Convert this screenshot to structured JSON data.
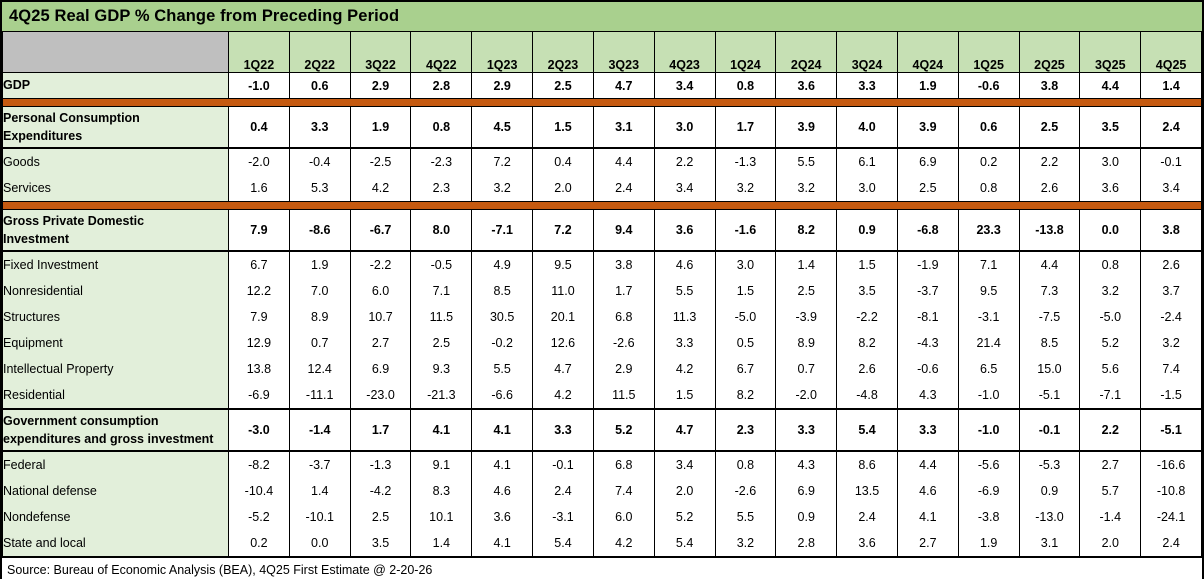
{
  "header": {
    "title": "4Q25 Real GDP % Change from Preceding Period"
  },
  "footer": {
    "source": "Source: Bureau of Economic Analysis (BEA), 4Q25 First Estimate @ 2-20-26"
  },
  "colors": {
    "title-green": "#A9D08E",
    "header-green": "#C6E0B4",
    "label-green": "#E2EFDA",
    "corner-gray": "#BFBFBF",
    "divider-orange": "#C55A11",
    "border-black": "#000000",
    "cell-white": "#FFFFFF"
  },
  "chart_data": {
    "type": "table",
    "title": "4Q25 Real GDP % Change from Preceding Period",
    "source": "Source: Bureau of Economic Analysis (BEA), 4Q25 First Estimate @ 2-20-26",
    "columns": [
      "1Q22",
      "2Q22",
      "3Q22",
      "4Q22",
      "1Q23",
      "2Q23",
      "3Q23",
      "4Q23",
      "1Q24",
      "2Q24",
      "3Q24",
      "4Q24",
      "1Q25",
      "2Q25",
      "3Q25",
      "4Q25"
    ],
    "rows": [
      {
        "name": "GDP",
        "label_lines": [
          "GDP"
        ],
        "header": true,
        "align": "center",
        "indent": 0,
        "values": [
          "-1.0",
          "0.6",
          "2.9",
          "2.8",
          "2.9",
          "2.5",
          "4.7",
          "3.4",
          "0.8",
          "3.6",
          "3.3",
          "1.9",
          "-0.6",
          "3.8",
          "4.4",
          "1.4"
        ]
      },
      {
        "separator": true
      },
      {
        "name": "Personal Consumption Expenditures",
        "label_lines": [
          "Personal Consumption",
          "Expenditures"
        ],
        "header": true,
        "indent": 0,
        "bottom_rule": true,
        "values": [
          "0.4",
          "3.3",
          "1.9",
          "0.8",
          "4.5",
          "1.5",
          "3.1",
          "3.0",
          "1.7",
          "3.9",
          "4.0",
          "3.9",
          "0.6",
          "2.5",
          "3.5",
          "2.4"
        ]
      },
      {
        "name": "Goods",
        "label_lines": [
          "Goods"
        ],
        "indent": 3,
        "values": [
          "-2.0",
          "-0.4",
          "-2.5",
          "-2.3",
          "7.2",
          "0.4",
          "4.4",
          "2.2",
          "-1.3",
          "5.5",
          "6.1",
          "6.9",
          "0.2",
          "2.2",
          "3.0",
          "-0.1"
        ]
      },
      {
        "name": "Services",
        "label_lines": [
          "Services"
        ],
        "indent": 3,
        "values": [
          "1.6",
          "5.3",
          "4.2",
          "2.3",
          "3.2",
          "2.0",
          "2.4",
          "3.4",
          "3.2",
          "3.2",
          "3.0",
          "2.5",
          "0.8",
          "2.6",
          "3.6",
          "3.4"
        ]
      },
      {
        "separator": true
      },
      {
        "name": "Gross Private Domestic Investment",
        "label_lines": [
          "Gross Private Domestic",
          "Investment"
        ],
        "header": true,
        "indent": 0,
        "bottom_rule": true,
        "values": [
          "7.9",
          "-8.6",
          "-6.7",
          "8.0",
          "-7.1",
          "7.2",
          "9.4",
          "3.6",
          "-1.6",
          "8.2",
          "0.9",
          "-6.8",
          "23.3",
          "-13.8",
          "0.0",
          "3.8"
        ]
      },
      {
        "name": "Fixed Investment",
        "label_lines": [
          "Fixed Investment"
        ],
        "indent": 3,
        "values": [
          "6.7",
          "1.9",
          "-2.2",
          "-0.5",
          "4.9",
          "9.5",
          "3.8",
          "4.6",
          "3.0",
          "1.4",
          "1.5",
          "-1.9",
          "7.1",
          "4.4",
          "0.8",
          "2.6"
        ]
      },
      {
        "name": "Nonresidential",
        "label_lines": [
          "Nonresidential"
        ],
        "indent": 4,
        "values": [
          "12.2",
          "7.0",
          "6.0",
          "7.1",
          "8.5",
          "11.0",
          "1.7",
          "5.5",
          "1.5",
          "2.5",
          "3.5",
          "-3.7",
          "9.5",
          "7.3",
          "3.2",
          "3.7"
        ]
      },
      {
        "name": "Structures",
        "label_lines": [
          "Structures"
        ],
        "indent": 5,
        "values": [
          "7.9",
          "8.9",
          "10.7",
          "11.5",
          "30.5",
          "20.1",
          "6.8",
          "11.3",
          "-5.0",
          "-3.9",
          "-2.2",
          "-8.1",
          "-3.1",
          "-7.5",
          "-5.0",
          "-2.4"
        ]
      },
      {
        "name": "Equipment",
        "label_lines": [
          "Equipment"
        ],
        "indent": 5,
        "values": [
          "12.9",
          "0.7",
          "2.7",
          "2.5",
          "-0.2",
          "12.6",
          "-2.6",
          "3.3",
          "0.5",
          "8.9",
          "8.2",
          "-4.3",
          "21.4",
          "8.5",
          "5.2",
          "3.2"
        ]
      },
      {
        "name": "Intellectual Property",
        "label_lines": [
          "Intellectual Property"
        ],
        "indent": 5,
        "values": [
          "13.8",
          "12.4",
          "6.9",
          "9.3",
          "5.5",
          "4.7",
          "2.9",
          "4.2",
          "6.7",
          "0.7",
          "2.6",
          "-0.6",
          "6.5",
          "15.0",
          "5.6",
          "7.4"
        ]
      },
      {
        "name": "Residential",
        "label_lines": [
          "Residential"
        ],
        "indent": 4,
        "values": [
          "-6.9",
          "-11.1",
          "-23.0",
          "-21.3",
          "-6.6",
          "4.2",
          "11.5",
          "1.5",
          "8.2",
          "-2.0",
          "-4.8",
          "4.3",
          "-1.0",
          "-5.1",
          "-7.1",
          "-1.5"
        ]
      },
      {
        "name": "Government consumption expenditures and gross investment",
        "label_lines": [
          "Government consumption",
          "expenditures and gross investment"
        ],
        "header": true,
        "indent": 0,
        "top_rule": true,
        "bottom_rule": true,
        "values": [
          "-3.0",
          "-1.4",
          "1.7",
          "4.1",
          "4.1",
          "3.3",
          "5.2",
          "4.7",
          "2.3",
          "3.3",
          "5.4",
          "3.3",
          "-1.0",
          "-0.1",
          "2.2",
          "-5.1"
        ]
      },
      {
        "name": "Federal",
        "label_lines": [
          "Federal"
        ],
        "indent": 1,
        "values": [
          "-8.2",
          "-3.7",
          "-1.3",
          "9.1",
          "4.1",
          "-0.1",
          "6.8",
          "3.4",
          "0.8",
          "4.3",
          "8.6",
          "4.4",
          "-5.6",
          "-5.3",
          "2.7",
          "-16.6"
        ]
      },
      {
        "name": "National defense",
        "label_lines": [
          "National defense"
        ],
        "indent": 2,
        "values": [
          "-10.4",
          "1.4",
          "-4.2",
          "8.3",
          "4.6",
          "2.4",
          "7.4",
          "2.0",
          "-2.6",
          "6.9",
          "13.5",
          "4.6",
          "-6.9",
          "0.9",
          "5.7",
          "-10.8"
        ]
      },
      {
        "name": "Nondefense",
        "label_lines": [
          "Nondefense"
        ],
        "indent": 2,
        "values": [
          "-5.2",
          "-10.1",
          "2.5",
          "10.1",
          "3.6",
          "-3.1",
          "6.0",
          "5.2",
          "5.5",
          "0.9",
          "2.4",
          "4.1",
          "-3.8",
          "-13.0",
          "-1.4",
          "-24.1"
        ]
      },
      {
        "name": "State and local",
        "label_lines": [
          "State and local"
        ],
        "indent": 1,
        "values": [
          "0.2",
          "0.0",
          "3.5",
          "1.4",
          "4.1",
          "5.4",
          "4.2",
          "5.4",
          "3.2",
          "2.8",
          "3.6",
          "2.7",
          "1.9",
          "3.1",
          "2.0",
          "2.4"
        ]
      }
    ]
  }
}
